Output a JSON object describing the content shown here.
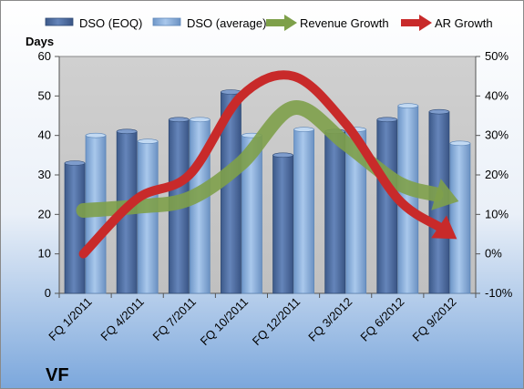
{
  "chart_data": {
    "type": "bar",
    "title": "",
    "brand_label": "VF",
    "y_left_label": "Days",
    "y_left_range": [
      0,
      60
    ],
    "y_left_ticks": [
      "0",
      "10",
      "20",
      "30",
      "40",
      "50",
      "60"
    ],
    "y_right_range": [
      -10,
      50
    ],
    "y_right_ticks": [
      "-10%",
      "0%",
      "10%",
      "20%",
      "30%",
      "40%",
      "50%"
    ],
    "grid": false,
    "legend_position": "top",
    "categories": [
      "FQ 1/2011",
      "FQ 4/2011",
      "FQ 7/2011",
      "FQ 10/2011",
      "FQ 12/2011",
      "FQ 3/2012",
      "FQ 6/2012",
      "FQ 9/2012"
    ],
    "series": [
      {
        "name": "DSO (EOQ)",
        "type": "bar",
        "axis": "left",
        "color": "#4f6fa3",
        "values": [
          33,
          41,
          44,
          51,
          35,
          41,
          44,
          46
        ]
      },
      {
        "name": "DSO (average)",
        "type": "bar",
        "axis": "left",
        "color": "#8fb4df",
        "values": [
          40,
          38.5,
          44,
          40,
          41.5,
          41.5,
          47.5,
          38
        ]
      },
      {
        "name": "Revenue Growth",
        "type": "arrow",
        "axis": "right",
        "color": "#7ea04a",
        "x": [
          0,
          1,
          2,
          3,
          4,
          5,
          6,
          7
        ],
        "values": [
          11,
          12,
          14,
          23,
          37,
          28,
          18,
          14
        ]
      },
      {
        "name": "AR Growth",
        "type": "arrow",
        "axis": "right",
        "color": "#c82a2a",
        "x": [
          0,
          1,
          2,
          3,
          4,
          5,
          6,
          7
        ],
        "values": [
          0,
          14,
          20,
          40,
          45,
          33,
          14,
          5
        ]
      }
    ]
  }
}
